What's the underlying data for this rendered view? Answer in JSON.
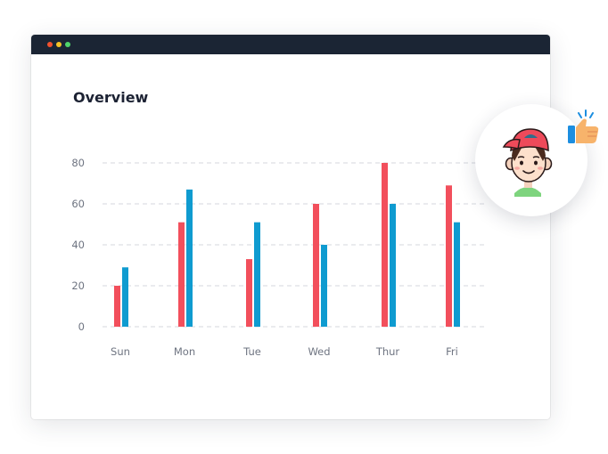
{
  "window": {
    "title": "Overview"
  },
  "chart_data": {
    "type": "bar",
    "title": "Overview",
    "categories": [
      "Sun",
      "Mon",
      "Tue",
      "Wed",
      "Thur",
      "Fri"
    ],
    "series": [
      {
        "values": [
          20,
          51,
          33,
          60,
          80,
          69
        ],
        "color": "#f24f5c"
      },
      {
        "values": [
          29,
          67,
          51,
          40,
          60,
          51
        ],
        "color": "#0f9bd0"
      }
    ],
    "yticks": [
      0,
      20,
      40,
      60,
      80
    ],
    "ylim": [
      0,
      80
    ],
    "grid": true,
    "xlabel": "",
    "ylabel": ""
  },
  "icons": {
    "avatar": "boy-avatar-icon",
    "thumbs_up": "thumbs-up-icon"
  },
  "colors": {
    "titlebar": "#1b2534",
    "grid": "#d4d7dd"
  }
}
